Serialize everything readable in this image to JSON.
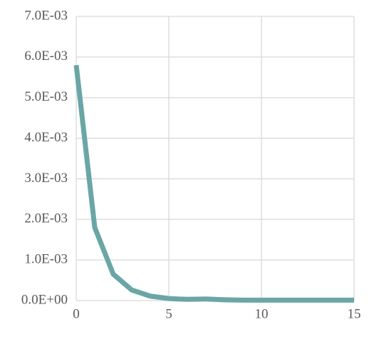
{
  "chart_data": {
    "type": "line",
    "x": [
      0,
      1,
      2,
      3,
      4,
      5,
      6,
      7,
      8,
      9,
      10,
      11,
      12,
      13,
      14,
      15
    ],
    "series": [
      {
        "color": "#6aa6a6",
        "values": [
          0.0058,
          0.0018,
          0.00065,
          0.00026,
          0.00011,
          5e-05,
          3e-05,
          4e-05,
          2e-05,
          1e-05,
          1e-05,
          1e-05,
          1e-05,
          1e-05,
          1e-05,
          1e-05
        ]
      }
    ],
    "xlim": [
      0,
      15
    ],
    "xticks": [
      0,
      5,
      10,
      15
    ],
    "ylim": [
      0,
      0.007
    ],
    "yticks": [
      {
        "value": 0,
        "label": "0.0E+00"
      },
      {
        "value": 0.001,
        "label": "1.0E-03"
      },
      {
        "value": 0.002,
        "label": "2.0E-03"
      },
      {
        "value": 0.003,
        "label": "3.0E-03"
      },
      {
        "value": 0.004,
        "label": "4.0E-03"
      },
      {
        "value": 0.005,
        "label": "5.0E-03"
      },
      {
        "value": 0.006,
        "label": "6.0E-03"
      },
      {
        "value": 0.007,
        "label": "7.0E-03"
      }
    ],
    "grid": true
  }
}
